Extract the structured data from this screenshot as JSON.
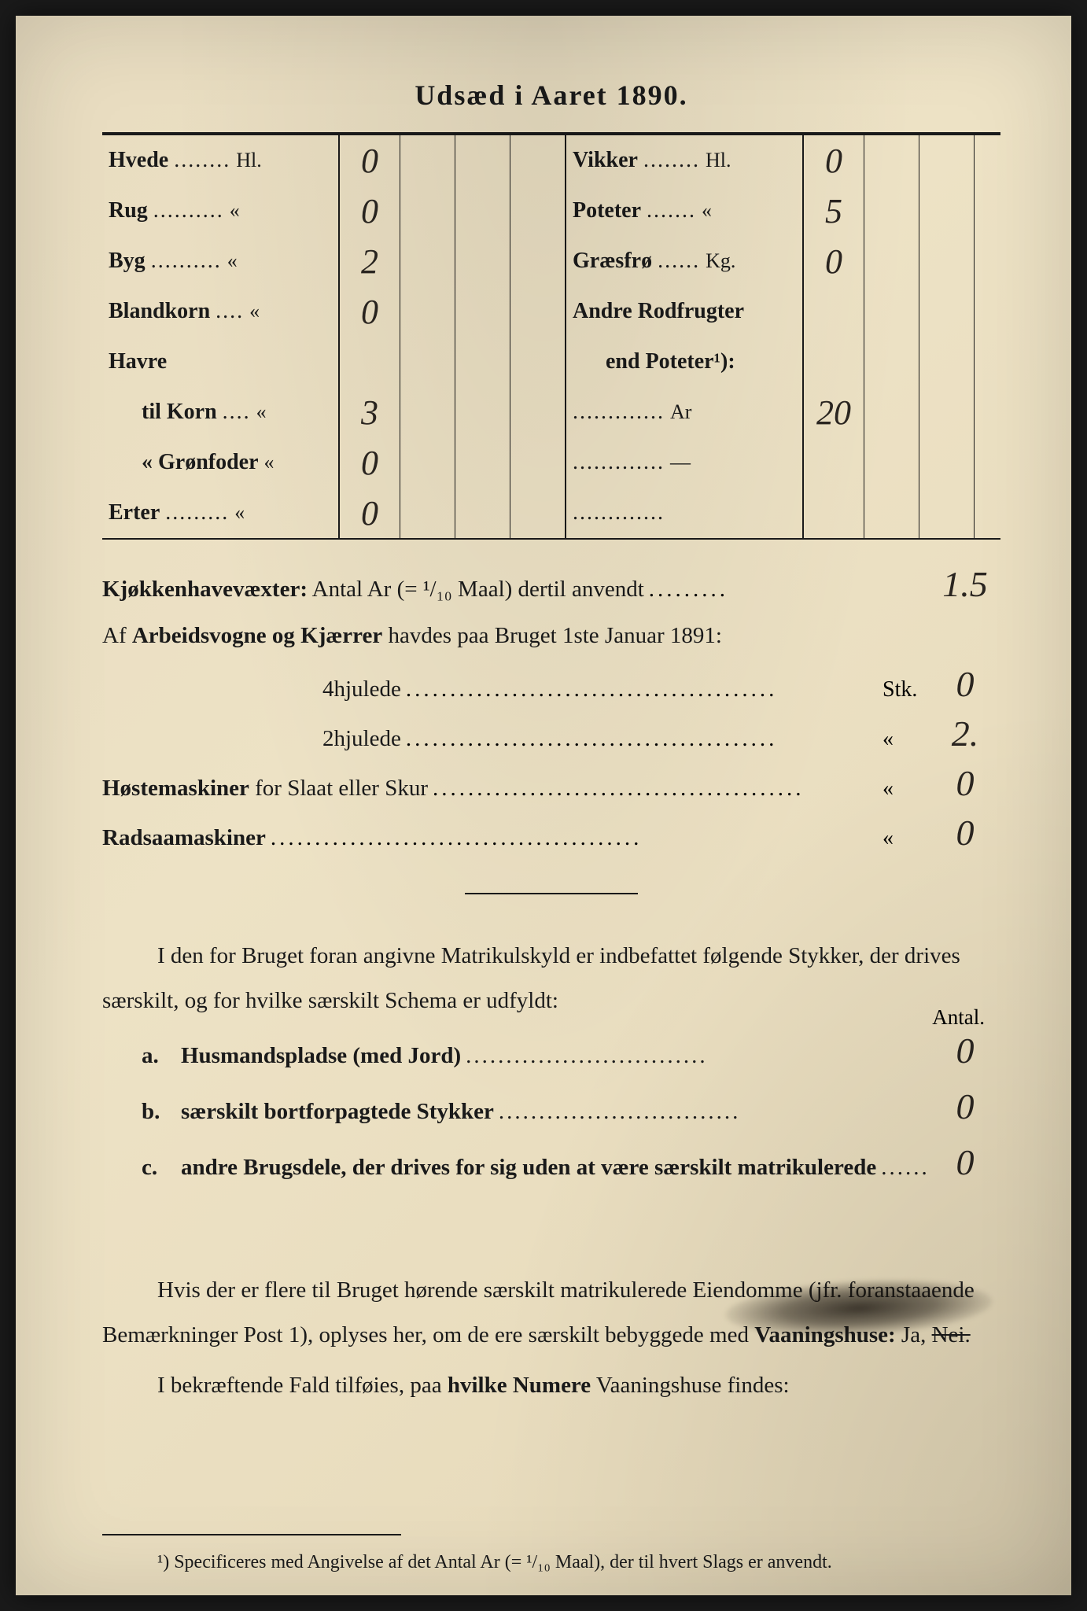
{
  "title": "Udsæd i Aaret 1890.",
  "grain_left": [
    {
      "label": "Hvede",
      "dots": "........",
      "unit": "Hl.",
      "value": "0"
    },
    {
      "label": "Rug",
      "dots": "..........",
      "unit": "«",
      "value": "0"
    },
    {
      "label": "Byg",
      "dots": "..........",
      "unit": "«",
      "value": "2"
    },
    {
      "label": "Blandkorn",
      "dots": "....",
      "unit": "«",
      "value": "0"
    },
    {
      "label": "Havre",
      "dots": "",
      "unit": "",
      "value": ""
    },
    {
      "label": "til Korn",
      "dots": "....",
      "unit": "«",
      "value": "3",
      "indent": true
    },
    {
      "label": "«  Grønfoder",
      "dots": "",
      "unit": "«",
      "value": "0",
      "indent": true
    },
    {
      "label": "Erter",
      "dots": ".........",
      "unit": "«",
      "value": "0"
    }
  ],
  "grain_right": [
    {
      "label": "Vikker",
      "dots": "........",
      "unit": "Hl.",
      "value": "0"
    },
    {
      "label": "Poteter",
      "dots": ".......",
      "unit": "«",
      "value": "5"
    },
    {
      "label": "Græsfrø",
      "dots": "......",
      "unit": "Kg.",
      "value": "0"
    },
    {
      "label": "Andre Rodfrugter",
      "dots": "",
      "unit": "",
      "value": ""
    },
    {
      "label": "end Poteter¹):",
      "dots": "",
      "unit": "",
      "value": "",
      "indent": true
    },
    {
      "label": "",
      "dots": ".............",
      "unit": "Ar",
      "value": "20"
    },
    {
      "label": "",
      "dots": ".............",
      "unit": "—",
      "value": ""
    },
    {
      "label": "",
      "dots": ".............",
      "unit": "",
      "value": ""
    }
  ],
  "kjokken": {
    "label": "Kjøkkenhavevæxter:",
    "text": " Antal Ar (= ¹/₁₀ Maal) dertil anvendt",
    "value": "1.5"
  },
  "arbeids_header": "Af Arbeidsvogne og Kjærrer havdes paa Bruget 1ste Januar 1891:",
  "lines": [
    {
      "label": "4hjulede",
      "unit": "Stk.",
      "value": "0",
      "indent": true
    },
    {
      "label": "2hjulede",
      "unit": "«",
      "value": "2.",
      "indent": true
    },
    {
      "label": "Høstemaskiner for Slaat eller Skur",
      "unit": "«",
      "value": "0",
      "bold_first": "Høstemaskiner"
    },
    {
      "label": "Radsaamaskiner",
      "unit": "«",
      "value": "0",
      "bold_first": "Radsaamaskiner"
    }
  ],
  "para1": "I den for Bruget foran angivne Matrikulskyld er indbefattet følgende Stykker, der drives særskilt, og for hvilke særskilt Schema er udfyldt:",
  "antal": "Antal.",
  "list": [
    {
      "letter": "a.",
      "text": "Husmandspladse (med Jord)",
      "value": "0"
    },
    {
      "letter": "b.",
      "text": "særskilt bortforpagtede Stykker",
      "value": "0"
    },
    {
      "letter": "c.",
      "text": "andre Brugsdele, der drives for sig uden at være særskilt matrikulerede",
      "value": "0"
    }
  ],
  "para2_a": "Hvis der er flere til Bruget hørende særskilt matrikulerede Eiendomme (jfr. foranstaaende Bemærkninger Post 1), oplyses her, om de ere særskilt bebyggede med ",
  "para2_b": "Vaaningshuse:",
  "para2_c": " Ja, ",
  "para2_d": "Nei.",
  "para3_a": "I bekræftende Fald tilføies, paa ",
  "para3_b": "hvilke Numere",
  "para3_c": " Vaaningshuse findes:",
  "footnote": "¹) Specificeres med Angivelse af det Antal Ar (= ¹/₁₀ Maal), der til hvert Slags er anvendt."
}
